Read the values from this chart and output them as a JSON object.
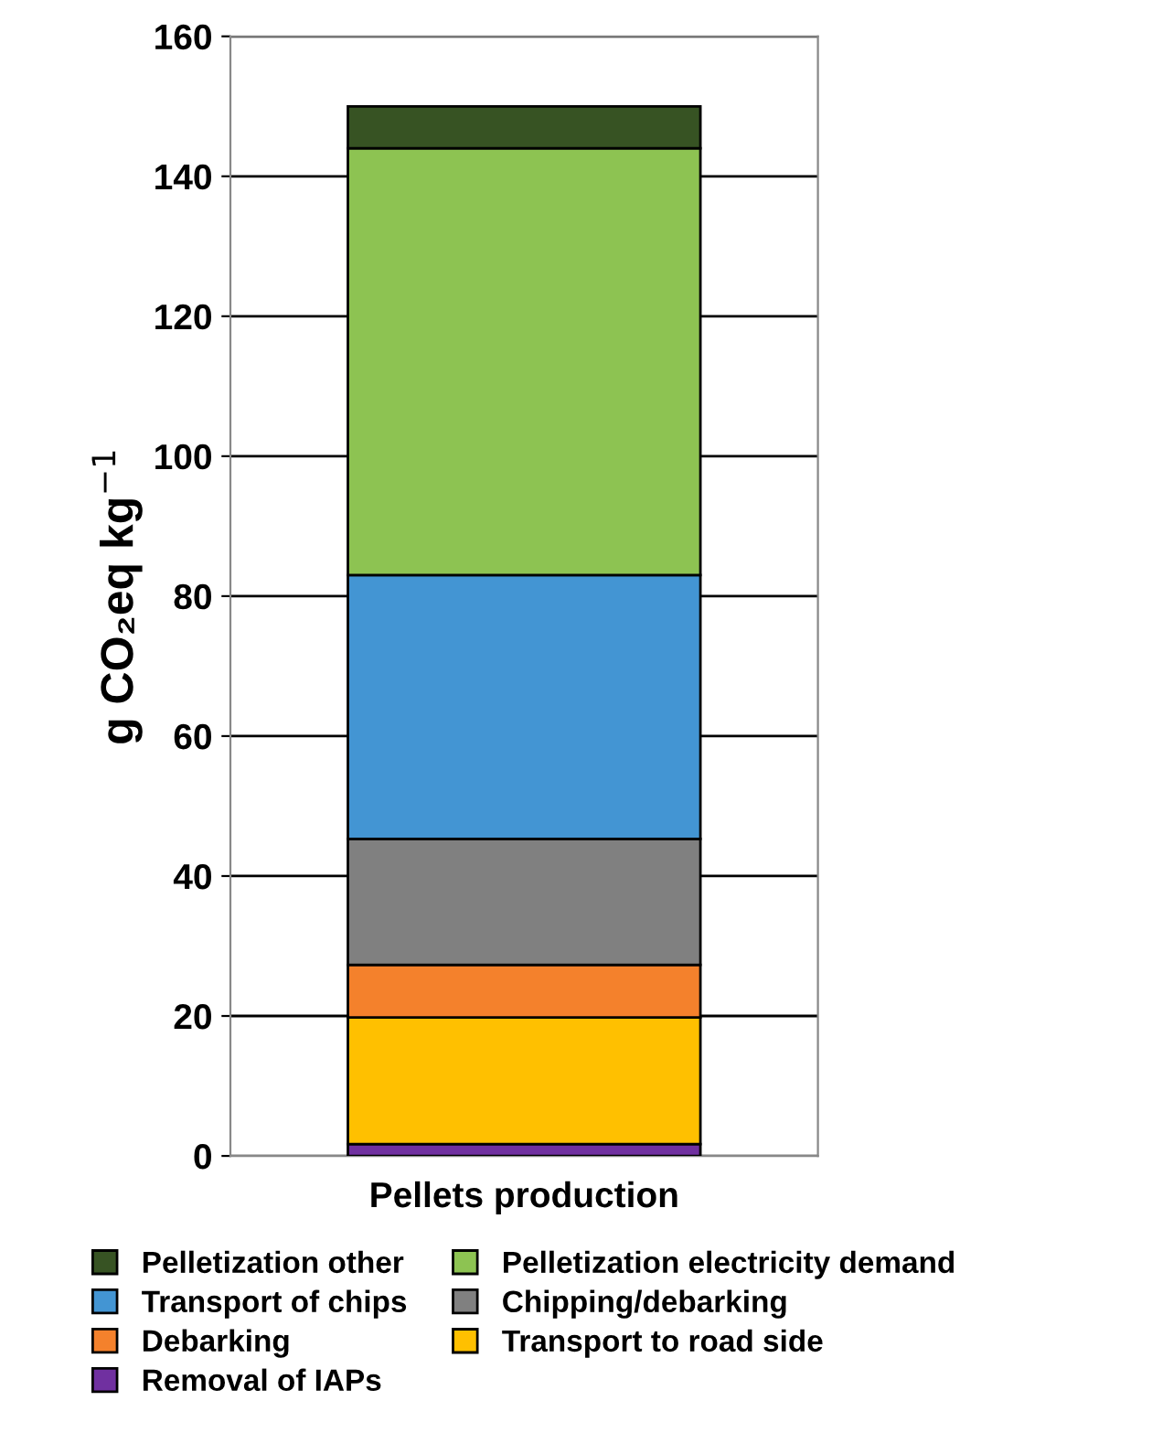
{
  "chart_data": {
    "type": "bar",
    "stacked": true,
    "ylabel": "g CO₂eq kg$^{−1}$",
    "categories": [
      "Pellets production"
    ],
    "series": [
      {
        "name": "Removal of IAPs",
        "color": "#7030a0",
        "values": [
          1.7
        ]
      },
      {
        "name": "Transport to road side",
        "color": "#ffc000",
        "values": [
          18.1
        ]
      },
      {
        "name": "Debarking",
        "color": "#f4812c",
        "values": [
          7.5
        ]
      },
      {
        "name": "Chipping/debarking",
        "color": "#808080",
        "values": [
          18
        ]
      },
      {
        "name": "Transport of chips",
        "color": "#4395d3",
        "values": [
          37.7
        ]
      },
      {
        "name": "Pelletization electricity demand",
        "color": "#8dc352",
        "values": [
          61
        ]
      },
      {
        "name": "Pelletization other",
        "color": "#375323",
        "values": [
          6
        ]
      }
    ],
    "ylim": [
      0,
      160
    ],
    "yticks": [
      0,
      20,
      40,
      60,
      80,
      100,
      120,
      140,
      160
    ],
    "grid": "y",
    "legend": "bottom"
  }
}
